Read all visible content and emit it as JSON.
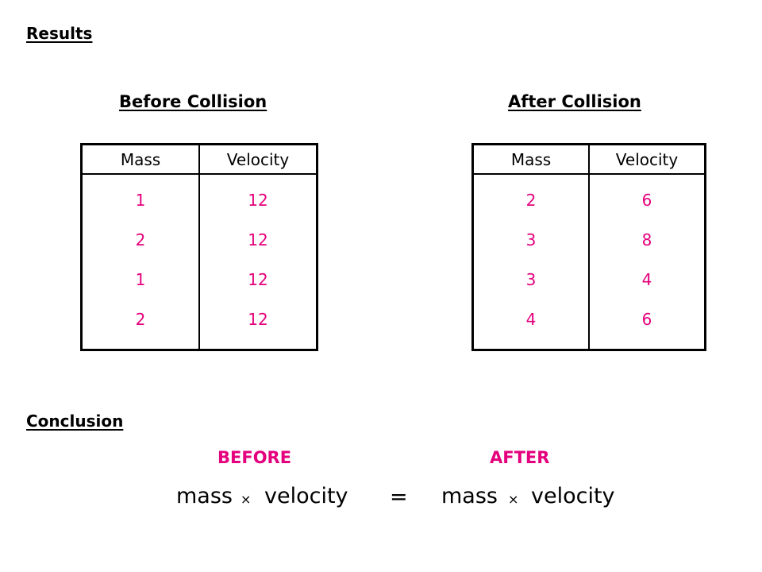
{
  "results": {
    "heading": "Results"
  },
  "before": {
    "heading": "Before Collision",
    "columns": [
      "Mass",
      "Velocity"
    ],
    "mass": [
      "1",
      "2",
      "1",
      "2"
    ],
    "velocity": [
      "12",
      "12",
      "12",
      "12"
    ]
  },
  "after": {
    "heading": "After Collision",
    "columns": [
      "Mass",
      "Velocity"
    ],
    "mass": [
      "2",
      "3",
      "3",
      "4"
    ],
    "velocity": [
      "6",
      "8",
      "4",
      "6"
    ]
  },
  "conclusion": {
    "heading": "Conclusion",
    "before_label": "BEFORE",
    "after_label": "AFTER",
    "lhs_mass": "mass",
    "lhs_times": "×",
    "lhs_velocity": "velocity",
    "equals": "=",
    "rhs_mass": "mass",
    "rhs_times": "×",
    "rhs_velocity": "velocity"
  },
  "colors": {
    "value_text": "#e4007c",
    "label_text": "#e4007c"
  }
}
